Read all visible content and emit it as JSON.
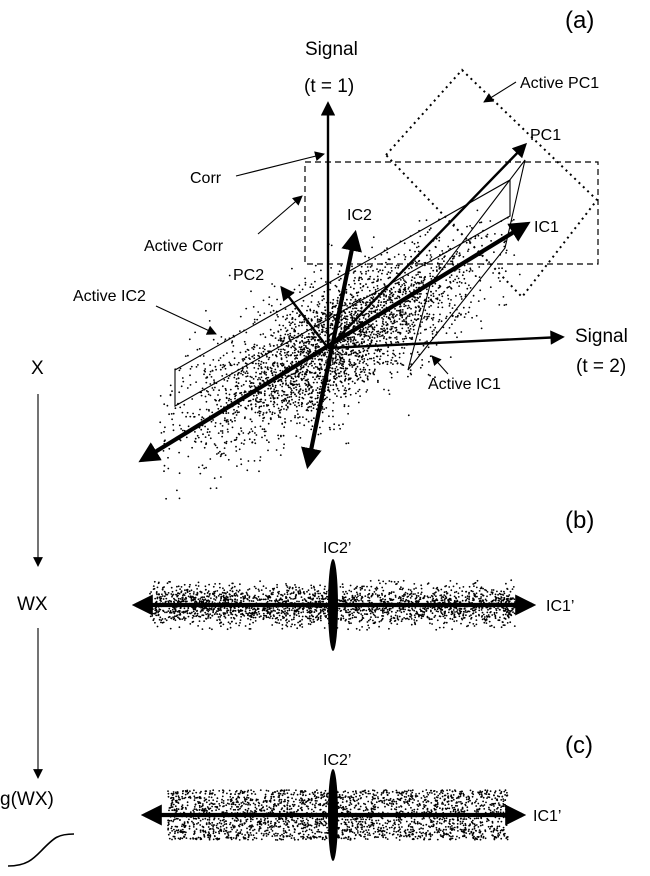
{
  "panels": {
    "a": "(a)",
    "b": "(b)",
    "c": "(c)"
  },
  "labels": {
    "signal_t1_line1": "Signal",
    "signal_t1_line2": "(t = 1)",
    "signal_t2_line1": "Signal",
    "signal_t2_line2": "(t = 2)",
    "active_pc1": "Active PC1",
    "pc1": "PC1",
    "ic1": "IC1",
    "ic2": "IC2",
    "pc2": "PC2",
    "corr": "Corr",
    "active_corr": "Active Corr",
    "active_ic2": "Active IC2",
    "active_ic1": "Active IC1",
    "ic1_prime_b": "IC1’",
    "ic2_prime_b": "IC2’",
    "ic1_prime_c": "IC1’",
    "ic2_prime_c": "IC2’"
  },
  "flow": [
    "X",
    "WX",
    "g(WX)"
  ]
}
